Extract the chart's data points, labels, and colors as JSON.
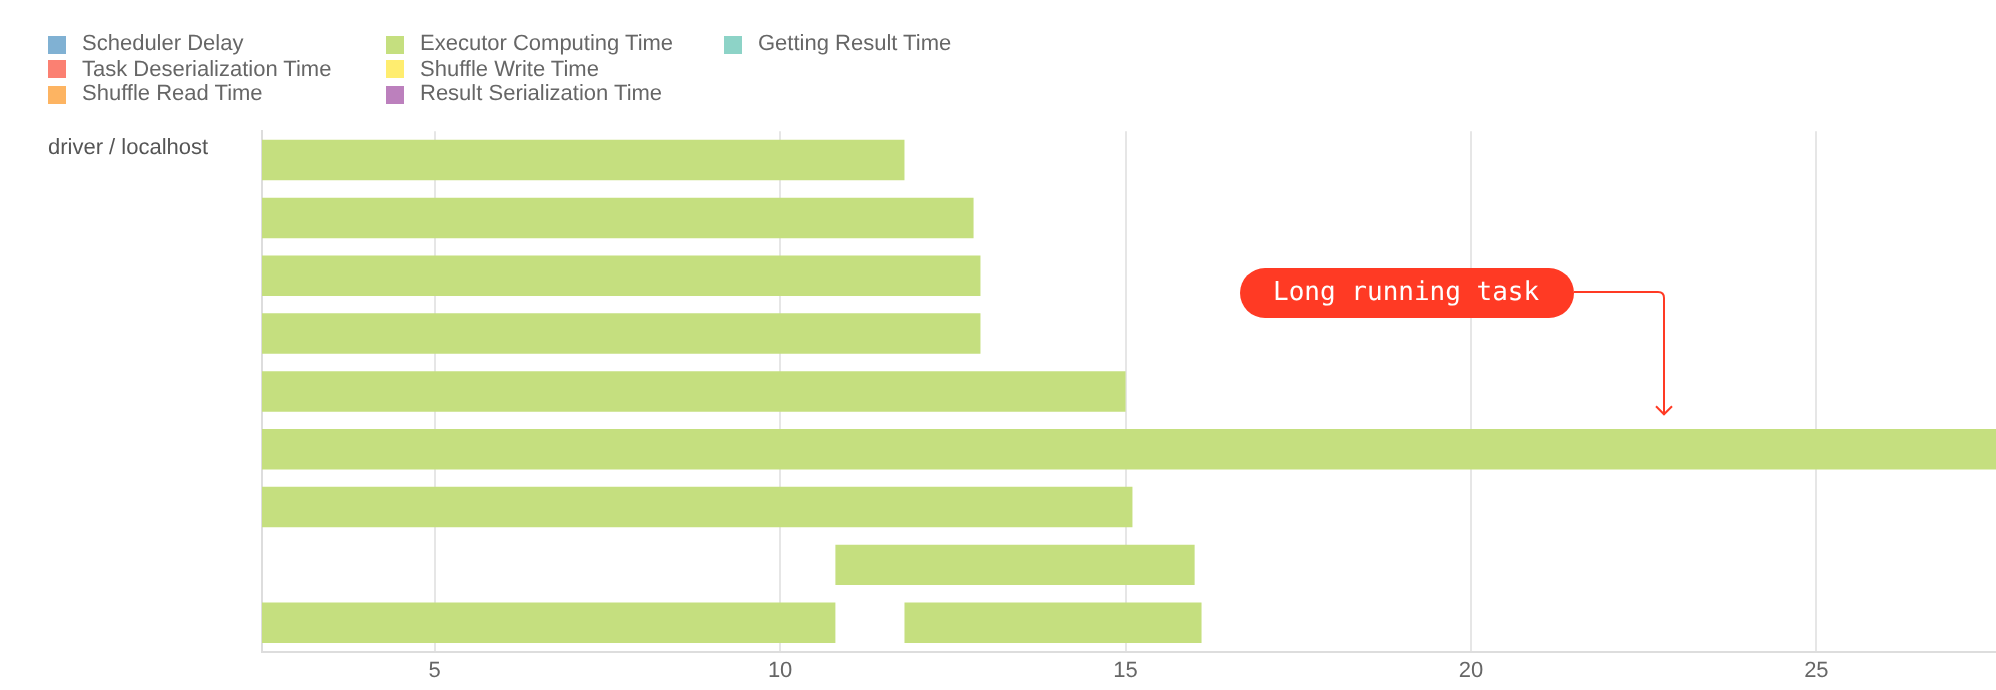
{
  "chart_data": {
    "type": "bar",
    "orientation": "horizontal",
    "legend": "top left",
    "grid": "x",
    "ylabel": "driver / localhost",
    "categories": [
      null,
      null,
      null,
      null,
      null,
      null,
      null,
      null,
      null
    ],
    "xlim": [
      2.5,
      27.6
    ],
    "xticks": [
      5,
      10,
      15,
      20,
      25
    ],
    "series": [
      {
        "name": "Scheduler Delay",
        "color": "#80b1d3",
        "values": [
          null,
          null,
          null,
          null,
          null,
          null,
          null,
          null,
          null
        ]
      },
      {
        "name": "Task Deserialization Time",
        "color": "#fb8072",
        "values": [
          null,
          null,
          null,
          null,
          null,
          null,
          null,
          null,
          null
        ]
      },
      {
        "name": "Shuffle Read Time",
        "color": "#fdb462",
        "values": [
          null,
          null,
          null,
          null,
          null,
          null,
          null,
          null,
          null
        ]
      },
      {
        "name": "Executor Computing Time",
        "color": "#c5df7f",
        "base": [
          2.5,
          2.5,
          2.5,
          2.5,
          2.5,
          2.5,
          2.5,
          10.8,
          2.5
        ],
        "values": [
          9.3,
          10.3,
          10.4,
          10.4,
          12.5,
          25.1,
          12.6,
          5.2,
          8.3
        ]
      },
      {
        "name": "Shuffle Write Time",
        "color": "#ffed6f",
        "values": [
          null,
          null,
          null,
          null,
          null,
          null,
          null,
          null,
          null
        ]
      },
      {
        "name": "Result Serialization Time",
        "color": "#bc80bd",
        "values": [
          null,
          null,
          null,
          null,
          null,
          null,
          null,
          null,
          null
        ]
      },
      {
        "name": "Getting Result Time",
        "color": "#8dd3c7",
        "values": [
          null,
          null,
          null,
          null,
          null,
          null,
          null,
          null,
          null
        ]
      },
      {
        "color": "#c5df7f",
        "base": [
          null,
          null,
          null,
          null,
          null,
          null,
          null,
          null,
          11.8
        ],
        "values": [
          null,
          null,
          null,
          null,
          null,
          null,
          null,
          null,
          4.3
        ]
      }
    ],
    "annotations": [
      "Long running task"
    ]
  }
}
